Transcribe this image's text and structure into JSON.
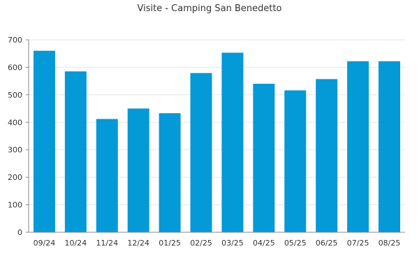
{
  "chart_data": {
    "type": "bar",
    "title": "Visite - Camping San Benedetto",
    "categories": [
      "09/24",
      "10/24",
      "11/24",
      "12/24",
      "01/25",
      "02/25",
      "03/25",
      "04/25",
      "05/25",
      "06/25",
      "07/25",
      "08/25"
    ],
    "values": [
      660,
      585,
      412,
      450,
      433,
      579,
      653,
      540,
      516,
      557,
      622,
      622
    ],
    "ylim": [
      0,
      700
    ],
    "yticks": [
      "0",
      "100",
      "200",
      "300",
      "400",
      "500",
      "600",
      "700"
    ],
    "grid": true,
    "bar_color": "#0499d7",
    "xlabel": "",
    "ylabel": ""
  }
}
